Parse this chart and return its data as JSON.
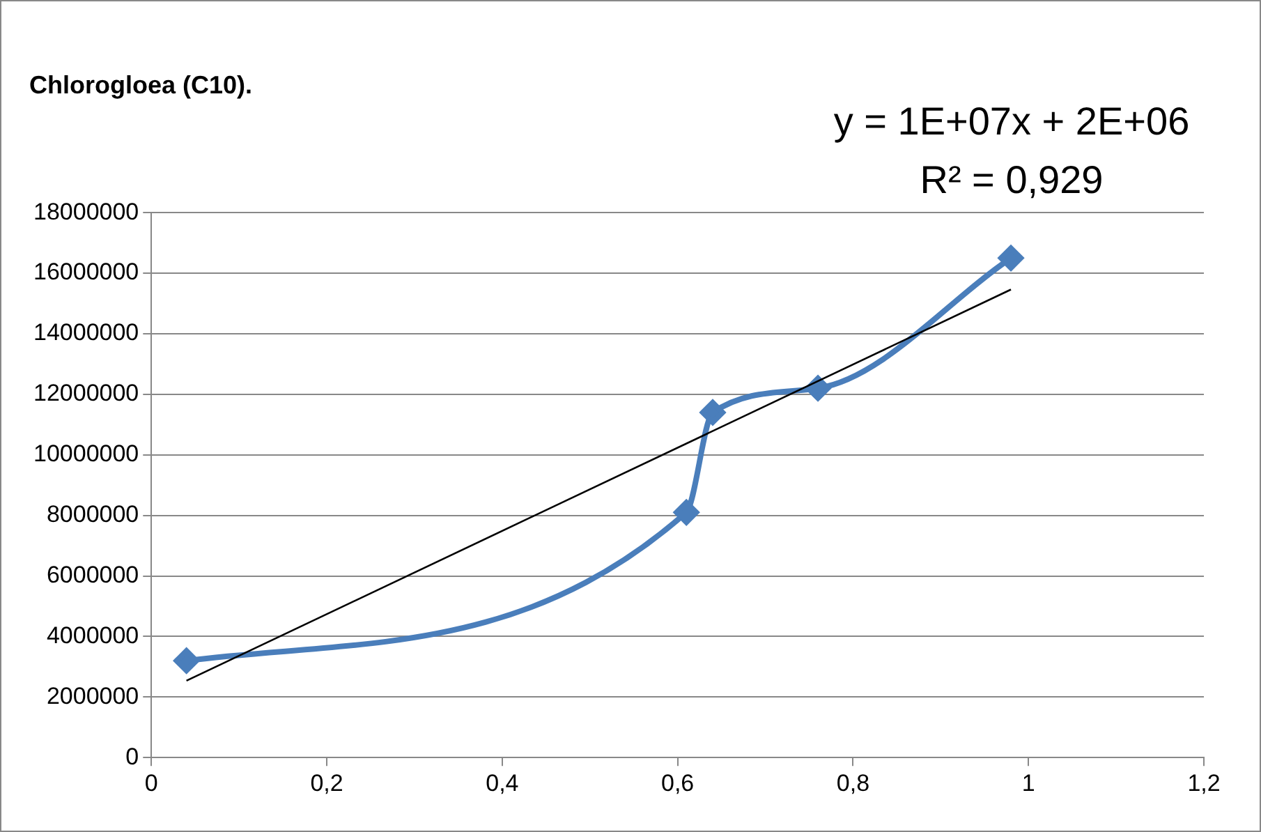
{
  "chart_data": {
    "type": "line",
    "title": "Chlorogloea (C10).",
    "annotations": [
      "y = 1E+07x + 2E+06",
      "R² = 0,929"
    ],
    "series": [
      {
        "color": "#4a7ebb",
        "x": [
          0.04,
          0.61,
          0.64,
          0.76,
          0.98
        ],
        "values": [
          3200000,
          8100000,
          11400000,
          12200000,
          16500000
        ],
        "marker": "diamond"
      },
      {
        "type": "line",
        "color": "#000000",
        "x": [
          0.04,
          0.98
        ],
        "values": [
          2540000,
          15460000
        ],
        "marker": "none"
      }
    ],
    "xlim": [
      0,
      1.2
    ],
    "xticks": [
      0,
      {
        "value": 0.2,
        "label": "0,2"
      },
      {
        "value": 0.4,
        "label": "0,4"
      },
      {
        "value": 0.6,
        "label": "0,6"
      },
      {
        "value": 0.8,
        "label": "0,8"
      },
      1,
      {
        "value": 1.2,
        "label": "1,2"
      }
    ],
    "ylim": [
      0,
      18000000
    ],
    "yticks": [
      0,
      2000000,
      4000000,
      6000000,
      8000000,
      10000000,
      12000000,
      14000000,
      16000000,
      18000000
    ],
    "grid": "y",
    "legend": false
  }
}
